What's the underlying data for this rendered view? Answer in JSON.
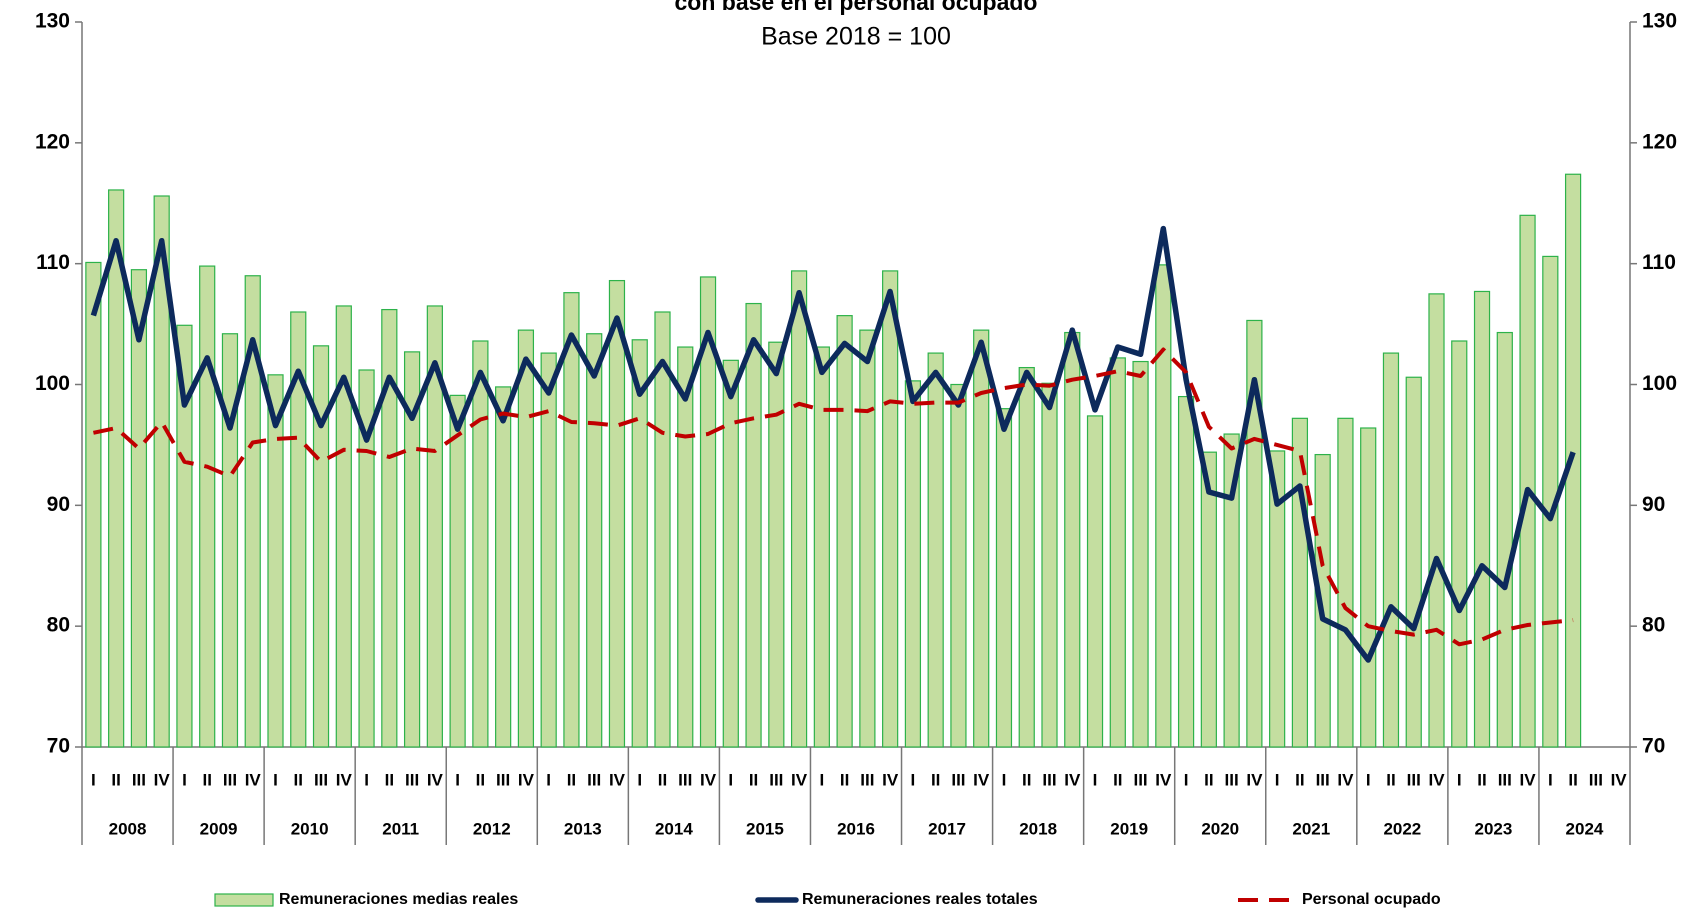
{
  "chart_data": {
    "type": "bar_line",
    "title": "con base en el personal ocupado",
    "subtitle": "Base 2018 = 100",
    "categories": [
      "I",
      "II",
      "III",
      "IV",
      "I",
      "II",
      "III",
      "IV",
      "I",
      "II",
      "III",
      "IV",
      "I",
      "II",
      "III",
      "IV",
      "I",
      "II",
      "III",
      "IV",
      "I",
      "II",
      "III",
      "IV",
      "I",
      "II",
      "III",
      "IV",
      "I",
      "II",
      "III",
      "IV",
      "I",
      "II",
      "III",
      "IV",
      "I",
      "II",
      "III",
      "IV",
      "I",
      "II",
      "III",
      "IV",
      "I",
      "II",
      "III",
      "IV",
      "I",
      "II",
      "III",
      "IV",
      "I",
      "II",
      "III",
      "IV",
      "I",
      "II",
      "III",
      "IV",
      "I",
      "II",
      "III",
      "IV",
      "I",
      "II",
      "III",
      "IV"
    ],
    "years": [
      "2008",
      "2009",
      "2010",
      "2011",
      "2012",
      "2013",
      "2014",
      "2015",
      "2016",
      "2017",
      "2018",
      "2019",
      "2020",
      "2021",
      "2022",
      "2023",
      "2024"
    ],
    "series": [
      {
        "name": "Remuneraciones medias reales",
        "kind": "bar",
        "color": "#c4dea0",
        "edge": "#2db24a",
        "values": [
          110.1,
          116.1,
          109.5,
          115.6,
          104.9,
          109.8,
          104.2,
          109.0,
          100.8,
          106.0,
          103.2,
          106.5,
          101.2,
          106.2,
          102.7,
          106.5,
          99.1,
          103.6,
          99.8,
          104.5,
          102.6,
          107.6,
          104.2,
          108.6,
          103.7,
          106.0,
          103.1,
          108.9,
          102.0,
          106.7,
          103.5,
          109.4,
          103.1,
          105.7,
          104.5,
          109.4,
          100.3,
          102.6,
          100.0,
          104.5,
          98.0,
          101.4,
          100.1,
          104.3,
          97.4,
          102.2,
          101.9,
          109.9,
          99.0,
          94.4,
          95.9,
          105.3,
          94.5,
          97.2,
          94.2,
          97.2,
          96.4,
          102.6,
          100.6,
          107.5,
          103.6,
          107.7,
          104.3,
          114.0,
          110.6,
          117.4,
          null,
          null
        ]
      },
      {
        "name": "Remuneraciones  reales totales",
        "kind": "line",
        "color": "#0d2a5c",
        "values": [
          105.7,
          111.9,
          103.7,
          111.9,
          98.3,
          102.2,
          96.4,
          103.7,
          96.6,
          101.1,
          96.6,
          100.6,
          95.4,
          100.6,
          97.2,
          101.8,
          96.3,
          101.0,
          97.0,
          102.1,
          99.3,
          104.1,
          100.7,
          105.5,
          99.2,
          101.9,
          98.8,
          104.3,
          99.0,
          103.7,
          100.9,
          107.6,
          101.0,
          103.4,
          101.9,
          107.7,
          98.6,
          101.0,
          98.3,
          103.5,
          96.3,
          101.0,
          98.1,
          104.5,
          97.9,
          103.1,
          102.5,
          112.9,
          100.4,
          91.1,
          90.6,
          100.4,
          90.1,
          91.6,
          80.6,
          79.7,
          77.2,
          81.6,
          79.8,
          85.6,
          81.3,
          85.0,
          83.2,
          91.3,
          88.9,
          94.4,
          null,
          null
        ]
      },
      {
        "name": "Personal ocupado",
        "kind": "dashed",
        "color": "#c00000",
        "values": [
          96.0,
          96.4,
          94.7,
          96.9,
          93.6,
          93.2,
          92.4,
          95.2,
          95.5,
          95.6,
          93.6,
          94.6,
          94.5,
          94.0,
          94.7,
          94.5,
          95.8,
          97.1,
          97.6,
          97.3,
          97.8,
          96.9,
          96.8,
          96.6,
          97.2,
          96.0,
          95.7,
          95.9,
          96.8,
          97.2,
          97.5,
          98.4,
          97.9,
          97.9,
          97.8,
          98.6,
          98.4,
          98.5,
          98.5,
          99.3,
          99.7,
          100.0,
          99.9,
          100.4,
          100.7,
          101.1,
          100.7,
          102.9,
          101.0,
          96.5,
          94.7,
          95.5,
          95.0,
          94.5,
          85.0,
          81.5,
          80.0,
          79.6,
          79.3,
          79.7,
          78.5,
          78.9,
          79.7,
          80.1,
          80.3,
          80.5,
          null,
          null
        ]
      }
    ],
    "ylim": [
      70,
      130
    ],
    "yticks": [
      70,
      80,
      90,
      100,
      110,
      120,
      130
    ]
  }
}
